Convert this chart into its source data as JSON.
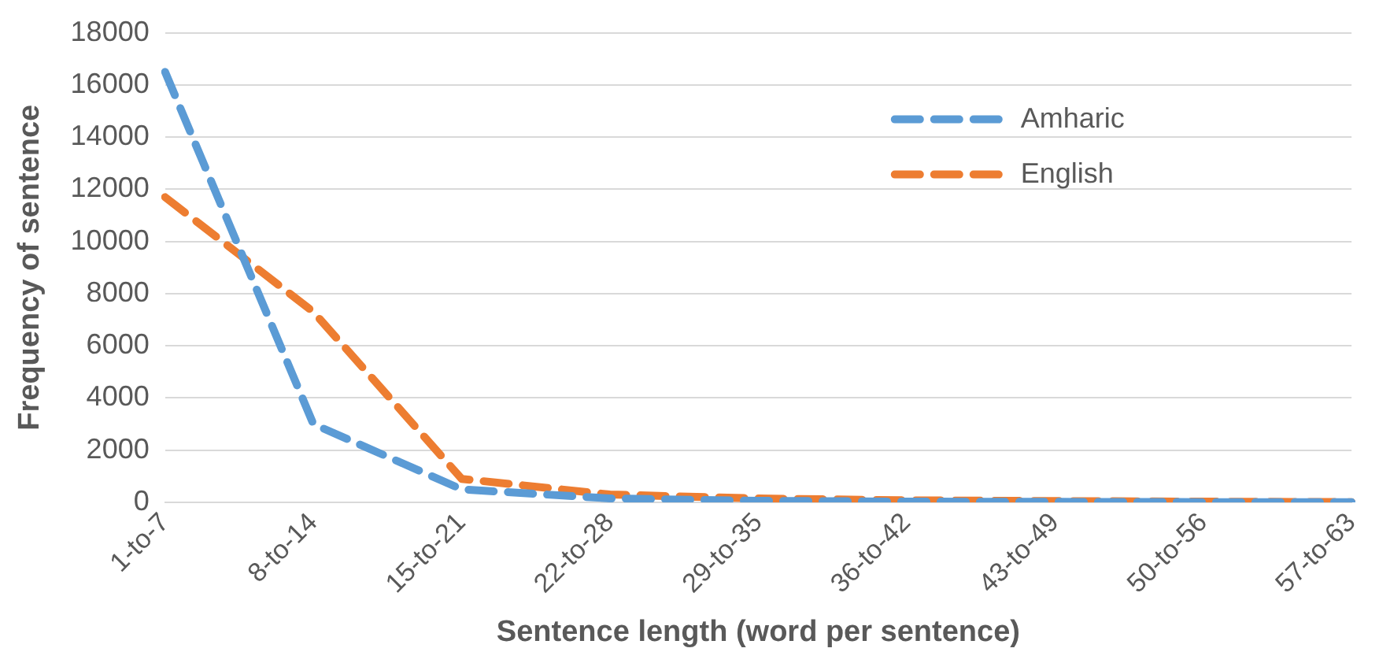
{
  "chart_data": {
    "type": "line",
    "xlabel": "Sentence length (word per sentence)",
    "ylabel": "Frequency of sentence",
    "categories": [
      "1-to-7",
      "8-to-14",
      "15-to-21",
      "22-to-28",
      "29-to-35",
      "36-to-42",
      "43-to-49",
      "50-to-56",
      "57-to-63"
    ],
    "series": [
      {
        "name": "Amharic",
        "color": "#5b9bd5",
        "line_style": "dashed",
        "values": [
          16500,
          3000,
          500,
          150,
          60,
          30,
          20,
          10,
          5
        ]
      },
      {
        "name": "English",
        "color": "#ed7d31",
        "line_style": "dashed",
        "values": [
          11700,
          7300,
          900,
          300,
          150,
          80,
          50,
          30,
          10
        ]
      }
    ],
    "ylim": [
      0,
      18000
    ],
    "yticks": [
      0,
      2000,
      4000,
      6000,
      8000,
      10000,
      12000,
      14000,
      16000,
      18000
    ],
    "grid": "y",
    "legend": "top right",
    "marker": "none"
  }
}
